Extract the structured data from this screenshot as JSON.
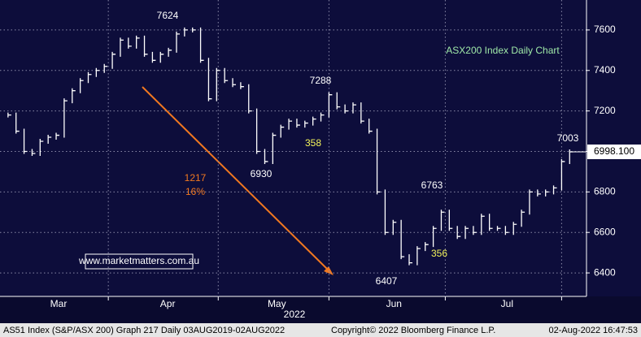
{
  "chart_data": {
    "type": "bar",
    "title": "ASX200 Index Daily Chart",
    "values": [
      7180,
      7100,
      7000,
      6990,
      7050,
      7070,
      7080,
      7250,
      7300,
      7350,
      7380,
      7400,
      7420,
      7480,
      7550,
      7520,
      7560,
      7480,
      7450,
      7480,
      7500,
      7580,
      7600,
      7600,
      7450,
      7260,
      7400,
      7350,
      7330,
      7320,
      7200,
      7000,
      6950,
      7080,
      7120,
      7150,
      7130,
      7140,
      7160,
      7180,
      7280,
      7220,
      7200,
      7230,
      7150,
      7100,
      6800,
      6600,
      6650,
      6480,
      6450,
      6520,
      6540,
      6620,
      6700,
      6620,
      6580,
      6620,
      6600,
      6680,
      6620,
      6620,
      6600,
      6640,
      6700,
      6800,
      6790,
      6800,
      6820,
      6950,
      6998.1
    ],
    "color": "#ffffff",
    "xlim": [
      -1,
      72
    ],
    "xticks": [
      {
        "value": 6.3,
        "label": "Mar"
      },
      {
        "value": 19.9,
        "label": "Apr"
      },
      {
        "value": 33.5,
        "label": "May"
      },
      {
        "value": 48.1,
        "label": "Jun"
      },
      {
        "value": 62.2,
        "label": "Jul"
      }
    ],
    "xgrid": [
      12.5,
      26.2,
      40,
      54.5,
      69
    ],
    "year_label": "2022",
    "ylim": [
      6284,
      7748
    ],
    "yticks": [
      6400,
      6600,
      6800,
      7000,
      7200,
      7400,
      7600
    ],
    "grid": true,
    "last_price": {
      "value": 6998.1,
      "label": "6998.100"
    },
    "annotations": [
      "7624",
      "7288",
      "6930",
      "6763",
      "6407",
      "7003",
      "358",
      "356",
      "1217",
      "16%"
    ],
    "watermark": "www.marketmatters.com.au",
    "footer": [
      "AS51 Index (S&P/ASX 200) Graph 217  Daily 03AUG2019-02AUG2022",
      "Copyright© 2022 Bloomberg Finance L.P.",
      "02-Aug-2022 16:47:53"
    ]
  }
}
